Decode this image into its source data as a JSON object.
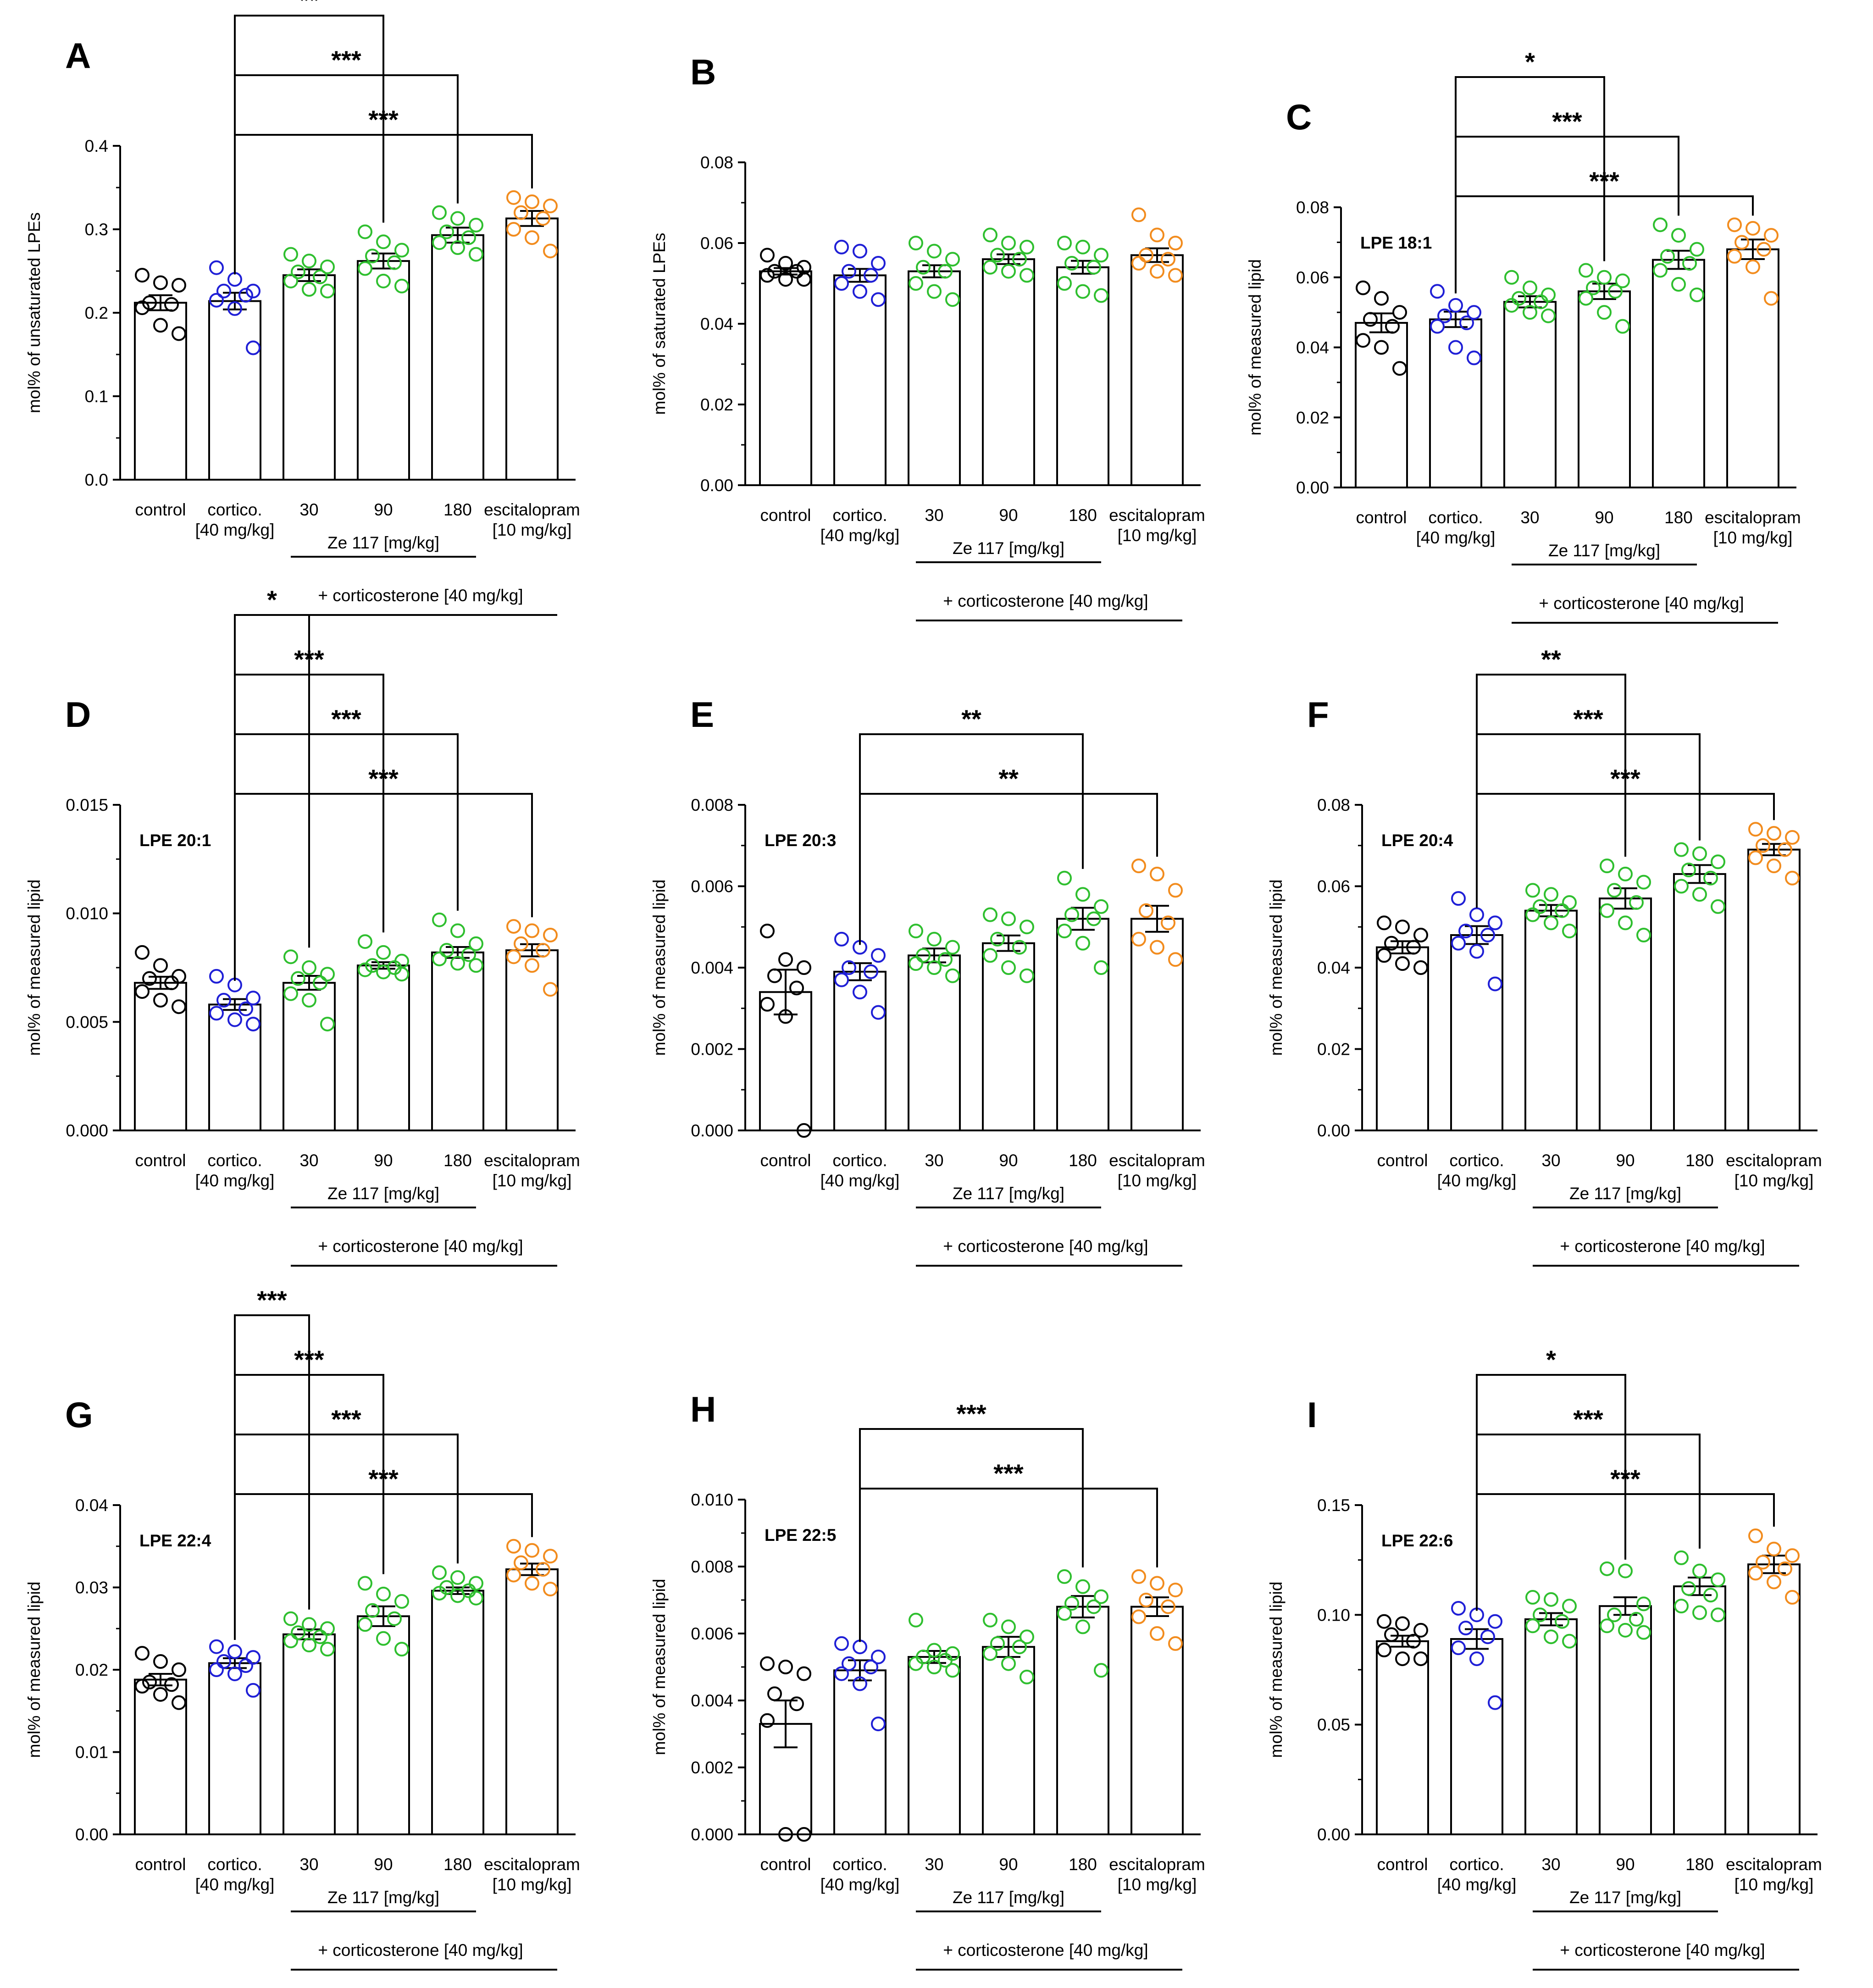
{
  "figure": {
    "categories": [
      "control",
      "cortico.",
      "30",
      "90",
      "180",
      "escitalopram"
    ],
    "category_sublabels": [
      "",
      "[40 mg/kg]",
      "",
      "",
      "",
      "[10 mg/kg]"
    ],
    "group_label_ze": "Ze 117 [mg/kg]",
    "group_label_cort": "+ corticosterone [40 mg/kg]",
    "colors": {
      "control": "#000000",
      "cortico": "#1f1fd6",
      "ze117": "#2fbf2f",
      "escitalopram": "#f28c1e"
    }
  },
  "chart_data": [
    {
      "type": "bar",
      "panel": "A",
      "title": "",
      "lipid_label": "",
      "ylabel": "mol% of unsaturated LPEs",
      "ylim": [
        0,
        0.4
      ],
      "yticks": [
        "0.0",
        "0.1",
        "0.2",
        "0.3",
        "0.4"
      ],
      "yticks_values": [
        0,
        0.1,
        0.2,
        0.3,
        0.4
      ],
      "values": [
        0.212,
        0.214,
        0.245,
        0.262,
        0.293,
        0.313
      ],
      "sem": [
        0.009,
        0.01,
        0.007,
        0.009,
        0.009,
        0.009
      ],
      "points": [
        [
          0.245,
          0.236,
          0.233,
          0.212,
          0.21,
          0.206,
          0.185,
          0.175
        ],
        [
          0.254,
          0.24,
          0.226,
          0.226,
          0.221,
          0.215,
          0.205,
          0.158
        ],
        [
          0.27,
          0.262,
          0.255,
          0.249,
          0.243,
          0.238,
          0.228,
          0.226
        ],
        [
          0.297,
          0.285,
          0.275,
          0.268,
          0.26,
          0.253,
          0.238,
          0.232
        ],
        [
          0.32,
          0.313,
          0.305,
          0.297,
          0.29,
          0.284,
          0.278,
          0.27
        ],
        [
          0.338,
          0.333,
          0.328,
          0.32,
          0.313,
          0.3,
          0.29,
          0.274
        ]
      ],
      "significance": [
        {
          "from": 1,
          "to": 3,
          "label": "**"
        },
        {
          "from": 1,
          "to": 4,
          "label": "***"
        },
        {
          "from": 1,
          "to": 5,
          "label": "***"
        }
      ]
    },
    {
      "type": "bar",
      "panel": "B",
      "title": "",
      "lipid_label": "",
      "ylabel": "mol% of saturated LPEs",
      "ylim": [
        0,
        0.08
      ],
      "yticks": [
        "0.00",
        "0.02",
        "0.04",
        "0.06",
        "0.08"
      ],
      "yticks_values": [
        0,
        0.02,
        0.04,
        0.06,
        0.08
      ],
      "values": [
        0.053,
        0.052,
        0.053,
        0.056,
        0.054,
        0.057
      ],
      "sem": [
        0.0008,
        0.0016,
        0.0015,
        0.0012,
        0.0016,
        0.0017
      ],
      "points": [
        [
          0.057,
          0.055,
          0.054,
          0.053,
          0.053,
          0.052,
          0.051,
          0.051
        ],
        [
          0.059,
          0.058,
          0.055,
          0.053,
          0.052,
          0.05,
          0.048,
          0.046
        ],
        [
          0.06,
          0.058,
          0.056,
          0.054,
          0.053,
          0.05,
          0.048,
          0.046
        ],
        [
          0.062,
          0.06,
          0.059,
          0.057,
          0.056,
          0.054,
          0.053,
          0.052
        ],
        [
          0.06,
          0.059,
          0.057,
          0.055,
          0.054,
          0.05,
          0.048,
          0.047
        ],
        [
          0.067,
          0.062,
          0.06,
          0.057,
          0.056,
          0.055,
          0.053,
          0.052
        ]
      ],
      "significance": []
    },
    {
      "type": "bar",
      "panel": "C",
      "title": "",
      "lipid_label": "LPE 18:1",
      "ylabel": "mol% of measured lipid",
      "ylim": [
        0,
        0.08
      ],
      "yticks": [
        "0.00",
        "0.02",
        "0.04",
        "0.06",
        "0.08"
      ],
      "yticks_values": [
        0,
        0.02,
        0.04,
        0.06,
        0.08
      ],
      "values": [
        0.047,
        0.048,
        0.053,
        0.056,
        0.065,
        0.068
      ],
      "sem": [
        0.0027,
        0.0022,
        0.0016,
        0.0022,
        0.0026,
        0.0028
      ],
      "points": [
        [
          0.057,
          0.054,
          0.05,
          0.048,
          0.046,
          0.042,
          0.04,
          0.034
        ],
        [
          0.056,
          0.052,
          0.05,
          0.049,
          0.047,
          0.046,
          0.04,
          0.037
        ],
        [
          0.06,
          0.057,
          0.055,
          0.054,
          0.053,
          0.052,
          0.05,
          0.049
        ],
        [
          0.062,
          0.06,
          0.059,
          0.057,
          0.056,
          0.054,
          0.05,
          0.046
        ],
        [
          0.075,
          0.072,
          0.068,
          0.066,
          0.064,
          0.062,
          0.058,
          0.055
        ],
        [
          0.075,
          0.074,
          0.072,
          0.07,
          0.068,
          0.066,
          0.063,
          0.054
        ]
      ],
      "significance": [
        {
          "from": 1,
          "to": 3,
          "label": "*"
        },
        {
          "from": 1,
          "to": 4,
          "label": "***"
        },
        {
          "from": 1,
          "to": 5,
          "label": "***"
        }
      ]
    },
    {
      "type": "bar",
      "panel": "D",
      "title": "",
      "lipid_label": "LPE 20:1",
      "ylabel": "mol% of measured lipid",
      "ylim": [
        0,
        0.015
      ],
      "yticks": [
        "0.000",
        "0.005",
        "0.010",
        "0.015"
      ],
      "yticks_values": [
        0,
        0.005,
        0.01,
        0.015
      ],
      "values": [
        0.0068,
        0.0058,
        0.0068,
        0.0076,
        0.0082,
        0.0083
      ],
      "sem": [
        0.00028,
        0.00025,
        0.00032,
        0.00015,
        0.00025,
        0.00028
      ],
      "points": [
        [
          0.0082,
          0.0076,
          0.0071,
          0.007,
          0.0068,
          0.0064,
          0.006,
          0.0057
        ],
        [
          0.0071,
          0.0067,
          0.0061,
          0.006,
          0.0056,
          0.0054,
          0.0051,
          0.0049
        ],
        [
          0.008,
          0.0075,
          0.0072,
          0.007,
          0.0068,
          0.0063,
          0.006,
          0.0049
        ],
        [
          0.0087,
          0.0082,
          0.0078,
          0.0076,
          0.0075,
          0.0074,
          0.0073,
          0.0072
        ],
        [
          0.0097,
          0.0092,
          0.0086,
          0.0083,
          0.0081,
          0.0079,
          0.0077,
          0.0076
        ],
        [
          0.0094,
          0.0092,
          0.009,
          0.0086,
          0.0083,
          0.008,
          0.0076,
          0.0065
        ]
      ],
      "significance": [
        {
          "from": 1,
          "to": 2,
          "label": "*"
        },
        {
          "from": 1,
          "to": 3,
          "label": "***"
        },
        {
          "from": 1,
          "to": 4,
          "label": "***"
        },
        {
          "from": 1,
          "to": 5,
          "label": "***"
        }
      ]
    },
    {
      "type": "bar",
      "panel": "E",
      "title": "",
      "lipid_label": "LPE 20:3",
      "ylabel": "mol% of measured lipid",
      "ylim": [
        0,
        0.008
      ],
      "yticks": [
        "0.000",
        "0.002",
        "0.004",
        "0.006",
        "0.008"
      ],
      "yticks_values": [
        0,
        0.002,
        0.004,
        0.006,
        0.008
      ],
      "values": [
        0.0034,
        0.0039,
        0.0043,
        0.0046,
        0.0052,
        0.0052
      ],
      "sem": [
        0.00055,
        0.00021,
        0.00017,
        0.00019,
        0.00027,
        0.00032
      ],
      "points": [
        [
          0.0049,
          0.0042,
          0.004,
          0.0038,
          0.0035,
          0.0031,
          0.0028,
          0.0
        ],
        [
          0.0047,
          0.0045,
          0.0043,
          0.004,
          0.0039,
          0.0037,
          0.0034,
          0.0029
        ],
        [
          0.0049,
          0.0047,
          0.0045,
          0.0043,
          0.0042,
          0.0041,
          0.004,
          0.0038
        ],
        [
          0.0053,
          0.0052,
          0.005,
          0.0047,
          0.0045,
          0.0043,
          0.004,
          0.0038
        ],
        [
          0.0062,
          0.0058,
          0.0055,
          0.0053,
          0.0052,
          0.0049,
          0.0046,
          0.004
        ],
        [
          0.0065,
          0.0063,
          0.0059,
          0.0054,
          0.0051,
          0.0047,
          0.0045,
          0.0042
        ]
      ],
      "significance": [
        {
          "from": 1,
          "to": 4,
          "label": "**"
        },
        {
          "from": 1,
          "to": 5,
          "label": "**"
        }
      ]
    },
    {
      "type": "bar",
      "panel": "F",
      "title": "",
      "lipid_label": "LPE 20:4",
      "ylabel": "mol% of measured lipid",
      "ylim": [
        0,
        0.08
      ],
      "yticks": [
        "0.00",
        "0.02",
        "0.04",
        "0.06",
        "0.08"
      ],
      "yticks_values": [
        0,
        0.02,
        0.04,
        0.06,
        0.08
      ],
      "values": [
        0.045,
        0.048,
        0.054,
        0.057,
        0.063,
        0.069
      ],
      "sem": [
        0.0015,
        0.0022,
        0.0014,
        0.0025,
        0.0022,
        0.0014
      ],
      "points": [
        [
          0.051,
          0.05,
          0.048,
          0.046,
          0.045,
          0.043,
          0.041,
          0.04
        ],
        [
          0.057,
          0.053,
          0.051,
          0.049,
          0.048,
          0.046,
          0.044,
          0.036
        ],
        [
          0.059,
          0.058,
          0.056,
          0.055,
          0.054,
          0.053,
          0.051,
          0.049
        ],
        [
          0.065,
          0.063,
          0.061,
          0.059,
          0.056,
          0.054,
          0.051,
          0.048
        ],
        [
          0.069,
          0.068,
          0.066,
          0.064,
          0.062,
          0.06,
          0.058,
          0.055
        ],
        [
          0.074,
          0.073,
          0.072,
          0.07,
          0.069,
          0.067,
          0.065,
          0.062
        ]
      ],
      "significance": [
        {
          "from": 1,
          "to": 3,
          "label": "**"
        },
        {
          "from": 1,
          "to": 4,
          "label": "***"
        },
        {
          "from": 1,
          "to": 5,
          "label": "***"
        }
      ]
    },
    {
      "type": "bar",
      "panel": "G",
      "title": "",
      "lipid_label": "LPE 22:4",
      "ylabel": "mol% of measured lipid",
      "ylim": [
        0,
        0.04
      ],
      "yticks": [
        "0.00",
        "0.01",
        "0.02",
        "0.03",
        "0.04"
      ],
      "yticks_values": [
        0,
        0.01,
        0.02,
        0.03,
        0.04
      ],
      "values": [
        0.0188,
        0.0208,
        0.0243,
        0.0265,
        0.0296,
        0.0322
      ],
      "sem": [
        0.0007,
        0.0006,
        0.0006,
        0.0012,
        0.0004,
        0.0007
      ],
      "points": [
        [
          0.022,
          0.021,
          0.02,
          0.0185,
          0.0182,
          0.018,
          0.017,
          0.016
        ],
        [
          0.0228,
          0.0222,
          0.0215,
          0.021,
          0.0205,
          0.02,
          0.0195,
          0.0175
        ],
        [
          0.0262,
          0.0255,
          0.025,
          0.0245,
          0.024,
          0.0235,
          0.023,
          0.0225
        ],
        [
          0.0305,
          0.0292,
          0.0283,
          0.0272,
          0.0262,
          0.0255,
          0.0238,
          0.0225
        ],
        [
          0.0318,
          0.0312,
          0.0305,
          0.03,
          0.0296,
          0.0293,
          0.029,
          0.0287
        ],
        [
          0.035,
          0.0345,
          0.0338,
          0.033,
          0.0322,
          0.0315,
          0.0305,
          0.0298
        ]
      ],
      "significance": [
        {
          "from": 1,
          "to": 2,
          "label": "***"
        },
        {
          "from": 1,
          "to": 3,
          "label": "***"
        },
        {
          "from": 1,
          "to": 4,
          "label": "***"
        },
        {
          "from": 1,
          "to": 5,
          "label": "***"
        }
      ]
    },
    {
      "type": "bar",
      "panel": "H",
      "title": "",
      "lipid_label": "LPE 22:5",
      "ylabel": "mol% of measured lipid",
      "ylim": [
        0,
        0.01
      ],
      "yticks": [
        "0.000",
        "0.002",
        "0.004",
        "0.006",
        "0.008",
        "0.010"
      ],
      "yticks_values": [
        0,
        0.002,
        0.004,
        0.006,
        0.008,
        0.01
      ],
      "values": [
        0.0033,
        0.0049,
        0.0053,
        0.0056,
        0.0068,
        0.0068
      ],
      "sem": [
        0.0007,
        0.0003,
        0.00018,
        0.0003,
        0.00032,
        0.00028
      ],
      "points": [
        [
          0.0051,
          0.005,
          0.0048,
          0.0042,
          0.0039,
          0.0034,
          0.0,
          0.0
        ],
        [
          0.0057,
          0.0056,
          0.0053,
          0.0051,
          0.005,
          0.0048,
          0.0045,
          0.0033
        ],
        [
          0.0064,
          0.0055,
          0.0054,
          0.0053,
          0.0052,
          0.0051,
          0.005,
          0.0049
        ],
        [
          0.0064,
          0.0062,
          0.0059,
          0.0057,
          0.0056,
          0.0054,
          0.0051,
          0.0047
        ],
        [
          0.0077,
          0.0074,
          0.0071,
          0.0069,
          0.0068,
          0.0066,
          0.0062,
          0.0049
        ],
        [
          0.0077,
          0.0075,
          0.0073,
          0.007,
          0.0068,
          0.0065,
          0.006,
          0.0057
        ]
      ],
      "significance": [
        {
          "from": 1,
          "to": 4,
          "label": "***"
        },
        {
          "from": 1,
          "to": 5,
          "label": "***"
        }
      ]
    },
    {
      "type": "bar",
      "panel": "I",
      "title": "",
      "lipid_label": "LPE 22:6",
      "ylabel": "mol% of measured lipid",
      "ylim": [
        0,
        0.15
      ],
      "yticks": [
        "0.00",
        "0.05",
        "0.10",
        "0.15"
      ],
      "yticks_values": [
        0,
        0.05,
        0.1,
        0.15
      ],
      "values": [
        0.088,
        0.089,
        0.098,
        0.104,
        0.113,
        0.123
      ],
      "sem": [
        0.0025,
        0.0045,
        0.0028,
        0.004,
        0.004,
        0.004
      ],
      "points": [
        [
          0.097,
          0.096,
          0.093,
          0.091,
          0.088,
          0.084,
          0.08,
          0.08
        ],
        [
          0.103,
          0.1,
          0.097,
          0.094,
          0.09,
          0.085,
          0.08,
          0.06
        ],
        [
          0.108,
          0.107,
          0.104,
          0.1,
          0.097,
          0.095,
          0.09,
          0.088
        ],
        [
          0.121,
          0.12,
          0.105,
          0.1,
          0.098,
          0.095,
          0.093,
          0.092
        ],
        [
          0.126,
          0.12,
          0.116,
          0.112,
          0.109,
          0.104,
          0.101,
          0.1
        ],
        [
          0.136,
          0.13,
          0.127,
          0.124,
          0.121,
          0.119,
          0.115,
          0.108
        ]
      ],
      "significance": [
        {
          "from": 1,
          "to": 3,
          "label": "*"
        },
        {
          "from": 1,
          "to": 4,
          "label": "***"
        },
        {
          "from": 1,
          "to": 5,
          "label": "***"
        }
      ]
    }
  ]
}
